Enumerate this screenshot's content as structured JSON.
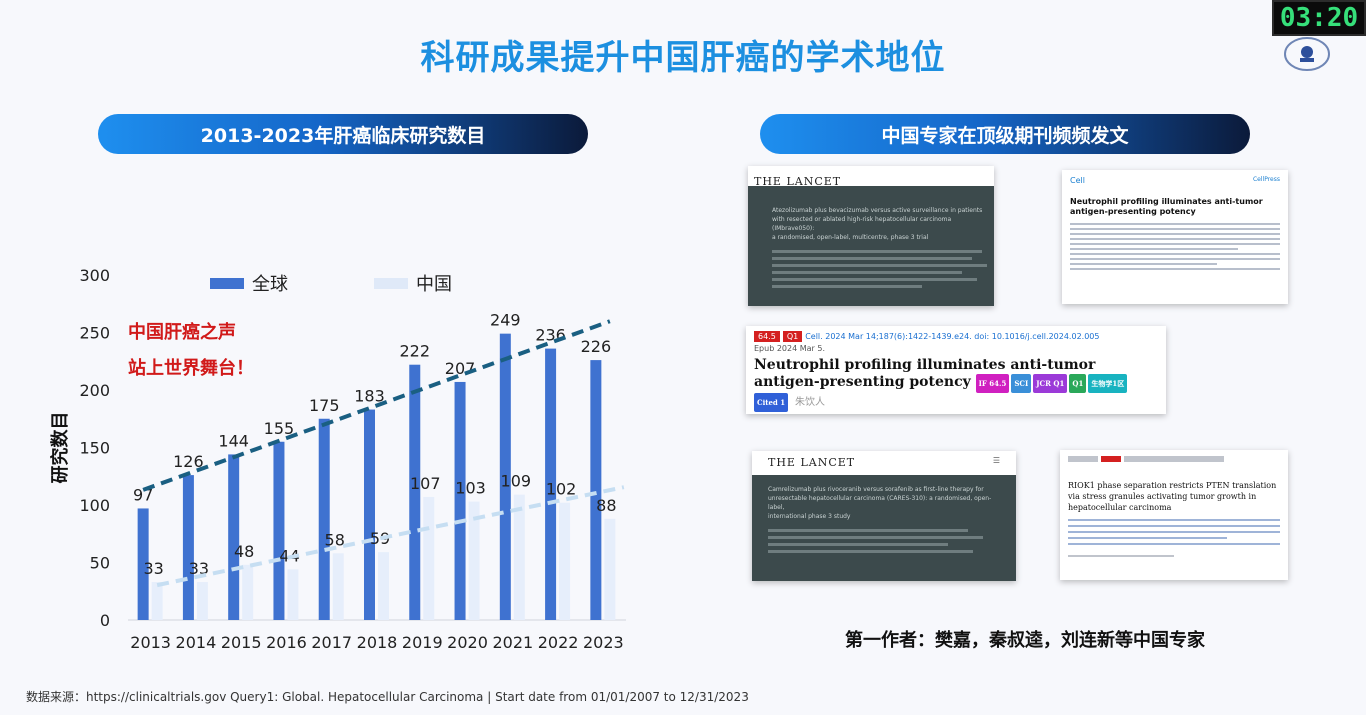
{
  "timer": "03:20",
  "title": "科研成果提升中国肝癌的学术地位",
  "left_header": "2013-2023年肝癌临床研究数目",
  "right_header": "中国专家在顶级期刊频频发文",
  "annotation": [
    "中国肝癌之声",
    "站上世界舞台！"
  ],
  "source": "数据来源：https://clinicaltrials.gov Query1: Global. Hepatocellular Carcinoma | Start date from 01/01/2007 to 12/31/2023",
  "chart_data": {
    "type": "bar",
    "categories": [
      "2013",
      "2014",
      "2015",
      "2016",
      "2017",
      "2018",
      "2019",
      "2020",
      "2021",
      "2022",
      "2023"
    ],
    "series": [
      {
        "name": "全球",
        "values": [
          97,
          126,
          144,
          155,
          175,
          183,
          222,
          207,
          249,
          236,
          226
        ],
        "color": "#3f72d0"
      },
      {
        "name": "中国",
        "values": [
          33,
          33,
          48,
          44,
          58,
          59,
          107,
          103,
          109,
          102,
          88
        ],
        "color": "#e6eefb"
      }
    ],
    "ylabel": "研究数目",
    "ylim": [
      0,
      300
    ],
    "yticks": [
      "0",
      "50",
      "100",
      "150",
      "200",
      "250",
      "300"
    ],
    "trendlines": "dashed",
    "legend": "top"
  },
  "papers": {
    "lancet1": {
      "journal": "THE LANCET",
      "lines": [
        "Atezolizumab plus bevacizumab versus active surveillance in patients",
        "with resected or ablated high-risk hepatocellular carcinoma (IMbrave050):",
        "a randomised, open-label, multicentre, phase 3 trial"
      ]
    },
    "cell1": {
      "journal": "Cell",
      "press": "CellPress",
      "title": "Neutrophil profiling illuminates anti-tumor antigen-presenting potency"
    },
    "cell2": {
      "if": "64.5",
      "q": "Q1",
      "citation": "Cell. 2024 Mar 14;187(6):1422-1439.e24. doi: 10.1016/j.cell.2024.02.005",
      "epub": "Epub 2024 Mar 5.",
      "title": "Neutrophil profiling illuminates anti-tumor antigen-presenting potency",
      "badges": [
        "IF 64.5",
        "SCI",
        "JCR Q1",
        "Q1",
        "生物学1区",
        "Cited 1"
      ],
      "watermark": "朱饮人"
    },
    "lancet2": {
      "journal": "THE LANCET",
      "lines": [
        "Camrelizumab plus rivoceranib versus sorafenib as first-line therapy for",
        "unresectable hepatocellular carcinoma (CARES-310): a randomised, open-label,",
        "international phase 3 study"
      ]
    },
    "paper5": {
      "title": "RIOK1 phase separation restricts PTEN translation via stress granules activating tumor growth in hepatocellular carcinoma"
    }
  },
  "caption": "第一作者：樊嘉，秦叔逵，刘连新等中国专家"
}
